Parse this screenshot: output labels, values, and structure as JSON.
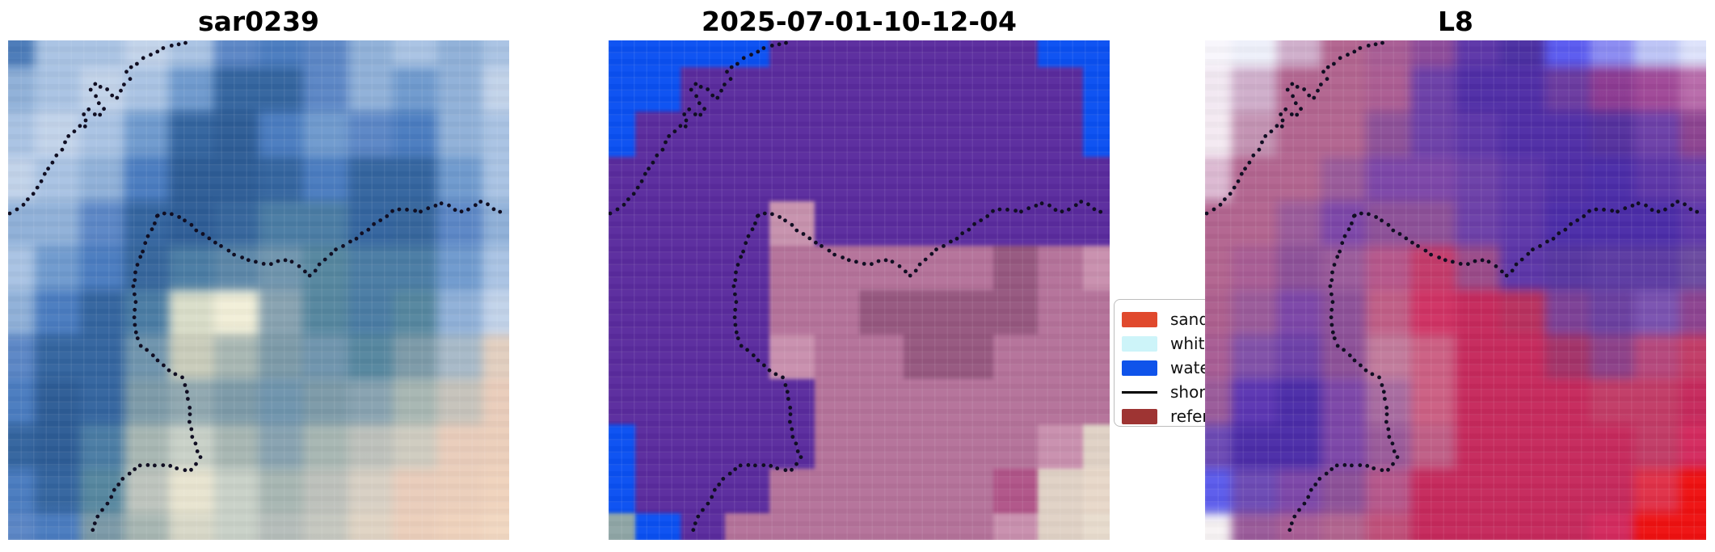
{
  "figure": {
    "background": "#ffffff"
  },
  "chart_data": [
    {
      "type": "heatmap",
      "title": "sar0239",
      "description": "SAR/optical satellite tile, pixelated blues with cloud and beige areas, dotted shoreline overlay",
      "grid_colors": [
        [
          "#4a7ab8",
          "#a9c3e3",
          "#a9c3e3",
          "#c2d3ea",
          "#a9c3e3",
          "#5b86c6",
          "#4a7cc0",
          "#5b86c6",
          "#8fb0d8",
          "#a9c3e3",
          "#8fb0d8",
          "#a9c3e3"
        ],
        [
          "#8fb0d8",
          "#a9c3e3",
          "#c2d3ea",
          "#a9c3e3",
          "#6f9ace",
          "#33649f",
          "#33649f",
          "#5b86c6",
          "#8fb0d8",
          "#6f9ace",
          "#8fb0d8",
          "#c2d3ea"
        ],
        [
          "#a9c3e3",
          "#c2d3ea",
          "#a9c3e3",
          "#6f9ace",
          "#33649f",
          "#2d5c96",
          "#4a7cc0",
          "#6f9ace",
          "#5b86c6",
          "#4a7cc0",
          "#8fb0d8",
          "#a9c3e3"
        ],
        [
          "#c2d3ea",
          "#a9c3e3",
          "#8fb0d8",
          "#4a7cc0",
          "#2d5c96",
          "#2d5c96",
          "#33649f",
          "#4a7cc0",
          "#33649f",
          "#33649f",
          "#6f9ace",
          "#a9c3e3"
        ],
        [
          "#8fb0d8",
          "#8fb0d8",
          "#5b86c6",
          "#33649f",
          "#2d5c96",
          "#35659c",
          "#4a7ca4",
          "#4a7ca4",
          "#33649f",
          "#35659c",
          "#5b86c6",
          "#8fb0d8"
        ],
        [
          "#a9c3e3",
          "#6f9ace",
          "#4a7cc0",
          "#35659c",
          "#4a7ca4",
          "#5b86a8",
          "#6f94ad",
          "#55869f",
          "#4a7ca4",
          "#4a7ca4",
          "#6f9ace",
          "#a9c3e3"
        ],
        [
          "#8fb0d8",
          "#4a7cc0",
          "#33649f",
          "#4a7ca4",
          "#d9ddc9",
          "#f2efd8",
          "#87a2b0",
          "#55869f",
          "#4a7ca4",
          "#55869f",
          "#8fb0d8",
          "#c2d3ea"
        ],
        [
          "#5b86c6",
          "#33649f",
          "#33649f",
          "#6f94ad",
          "#c9ccba",
          "#a7b6b2",
          "#7c9aa8",
          "#6f94ad",
          "#55869f",
          "#7c9aa8",
          "#a7b9c8",
          "#e2cfc0"
        ],
        [
          "#4a7cc0",
          "#2d5c96",
          "#33649f",
          "#7c9aa8",
          "#90a8b0",
          "#7c9aa8",
          "#6f94ad",
          "#7c9aa8",
          "#87a2b0",
          "#a7b6b2",
          "#c6c3bb",
          "#e9cdbb"
        ],
        [
          "#33649f",
          "#2d5c96",
          "#4a7ca4",
          "#a7b6b2",
          "#c9d1c8",
          "#a7b6b2",
          "#87a2b0",
          "#a7b6b2",
          "#bdc1bb",
          "#cfccc0",
          "#e9cdbb",
          "#eccfbb"
        ],
        [
          "#4a7cc0",
          "#33649f",
          "#55869f",
          "#bdc4bd",
          "#e8e4d0",
          "#c9d1c8",
          "#a7b6b2",
          "#bdc1bb",
          "#d8d0c4",
          "#e9cdbb",
          "#eccfbb",
          "#f0d3bd"
        ],
        [
          "#5b86c6",
          "#4a7cc0",
          "#7c9aa8",
          "#a7b6b2",
          "#d8d8c8",
          "#c9d1c8",
          "#b5bdba",
          "#c6c8c0",
          "#e0d4c4",
          "#eccfbb",
          "#f0d3bd",
          "#f2d8c2"
        ]
      ]
    },
    {
      "type": "heatmap",
      "title": "2025-07-01-10-12-04",
      "description": "Classified map: blue water dome corners, purple interior, pink land, cream corner, dotted shoreline overlay",
      "grid_colors": [
        [
          "#0a50f2",
          "#0a50f2",
          "#0a50f2",
          "#0a50f2",
          "#5a2b9e",
          "#5a2b9e",
          "#5a2b9e",
          "#5a2b9e",
          "#5a2b9e",
          "#5a2b9e",
          "#0a50f2",
          "#0a50f2"
        ],
        [
          "#0a50f2",
          "#0a50f2",
          "#5a2b9e",
          "#5a2b9e",
          "#5a2b9e",
          "#5a2b9e",
          "#5a2b9e",
          "#5a2b9e",
          "#5a2b9e",
          "#5a2b9e",
          "#5a2b9e",
          "#0a50f2"
        ],
        [
          "#0a50f2",
          "#5a2b9e",
          "#5a2b9e",
          "#5a2b9e",
          "#5a2b9e",
          "#5a2b9e",
          "#5a2b9e",
          "#5a2b9e",
          "#5a2b9e",
          "#5a2b9e",
          "#5a2b9e",
          "#0a50f2"
        ],
        [
          "#5a2b9e",
          "#5a2b9e",
          "#5a2b9e",
          "#5a2b9e",
          "#5a2b9e",
          "#5a2b9e",
          "#5a2b9e",
          "#5a2b9e",
          "#5a2b9e",
          "#5a2b9e",
          "#5a2b9e",
          "#5a2b9e"
        ],
        [
          "#5a2b9e",
          "#5a2b9e",
          "#5a2b9e",
          "#5a2b9e",
          "#c791ad",
          "#5a2b9e",
          "#5a2b9e",
          "#5a2b9e",
          "#5a2b9e",
          "#5a2b9e",
          "#5a2b9e",
          "#5a2b9e"
        ],
        [
          "#5a2b9e",
          "#5a2b9e",
          "#5a2b9e",
          "#5a2b9e",
          "#b4729a",
          "#b4729a",
          "#b4729a",
          "#b4729a",
          "#b4729a",
          "#96577f",
          "#b4729a",
          "#c98fae"
        ],
        [
          "#5a2b9e",
          "#5a2b9e",
          "#5a2b9e",
          "#5a2b9e",
          "#b4729a",
          "#b4729a",
          "#96577f",
          "#96577f",
          "#96577f",
          "#96577f",
          "#b4729a",
          "#b4729a"
        ],
        [
          "#5a2b9e",
          "#5a2b9e",
          "#5a2b9e",
          "#5a2b9e",
          "#c98fae",
          "#b4729a",
          "#b4729a",
          "#96577f",
          "#96577f",
          "#b4729a",
          "#b4729a",
          "#b4729a"
        ],
        [
          "#5a2b9e",
          "#5a2b9e",
          "#5a2b9e",
          "#5a2b9e",
          "#5a2b9e",
          "#b4729a",
          "#b4729a",
          "#b4729a",
          "#b4729a",
          "#b4729a",
          "#b4729a",
          "#b4729a"
        ],
        [
          "#0a50f2",
          "#5a2b9e",
          "#5a2b9e",
          "#5a2b9e",
          "#5a2b9e",
          "#b4729a",
          "#b4729a",
          "#b4729a",
          "#b4729a",
          "#b4729a",
          "#c98fae",
          "#e0d2c6"
        ],
        [
          "#0a50f2",
          "#5a2b9e",
          "#5a2b9e",
          "#5a2b9e",
          "#b4729a",
          "#b4729a",
          "#b4729a",
          "#b4729a",
          "#b4729a",
          "#b05488",
          "#e0d2c6",
          "#e8d8ca"
        ],
        [
          "#8fa6a6",
          "#0a50f2",
          "#5a2b9e",
          "#b4729a",
          "#b4729a",
          "#b4729a",
          "#b4729a",
          "#b4729a",
          "#b4729a",
          "#c98fae",
          "#e0d2c6",
          "#e8dcce"
        ]
      ]
    },
    {
      "type": "heatmap",
      "title": "L8",
      "description": "Landsat-8 style tile: white corners, mauve arc, indigo upper-right, crimson land, bright red corner, dotted shoreline overlay",
      "grid_colors": [
        [
          "#f8f6fc",
          "#eef0fa",
          "#cfaecb",
          "#b2648f",
          "#a85c94",
          "#8c4a9a",
          "#5c35a8",
          "#4b2fa2",
          "#5a5af0",
          "#8a8af2",
          "#bcc4f6",
          "#dde2fb"
        ],
        [
          "#f2e8f2",
          "#cfaecb",
          "#b2648f",
          "#b2648f",
          "#ab5c92",
          "#6c3fa8",
          "#4f2da6",
          "#4f2da6",
          "#6a3aa0",
          "#8c3a92",
          "#a04898",
          "#b86aaa"
        ],
        [
          "#f4eaf2",
          "#c392b2",
          "#b2648f",
          "#b2648f",
          "#8c5098",
          "#6c3fa8",
          "#5c35a8",
          "#4f2da6",
          "#4f2da6",
          "#54309e",
          "#6c3fa8",
          "#8c4390"
        ],
        [
          "#dcb9d2",
          "#b2648f",
          "#b2648f",
          "#9a5a9a",
          "#7c46a8",
          "#7c46a8",
          "#6c3fa8",
          "#5c35a8",
          "#4f2da6",
          "#4b2ca8",
          "#5c35a8",
          "#6c3fa8"
        ],
        [
          "#b2648f",
          "#b2648f",
          "#9a5a9a",
          "#7c46a8",
          "#8c5098",
          "#8c5098",
          "#6c3fa8",
          "#5c35a8",
          "#4b2ca8",
          "#4b2ca8",
          "#4b2ca8",
          "#5c35a8"
        ],
        [
          "#b2648f",
          "#a85c94",
          "#8c5098",
          "#9a5a9a",
          "#b5568a",
          "#c43a6a",
          "#9a4a88",
          "#5c35a8",
          "#5635a0",
          "#5b3aa2",
          "#5b3aa2",
          "#6a4aa0"
        ],
        [
          "#ad5f8e",
          "#9a5a9a",
          "#7c46a8",
          "#8c5098",
          "#c05e86",
          "#d03264",
          "#c6295c",
          "#b8305e",
          "#7c3f96",
          "#6a3fa0",
          "#7a52b0",
          "#8c4390"
        ],
        [
          "#a85c94",
          "#8050a8",
          "#6c3fa8",
          "#8c5098",
          "#c27b9c",
          "#cc5f83",
          "#c6295c",
          "#c6295c",
          "#a33268",
          "#8c4088",
          "#b5477c",
          "#c23b66"
        ],
        [
          "#9a5a9a",
          "#5b35b2",
          "#4b2ca8",
          "#7c46a8",
          "#a86ba0",
          "#cc5f83",
          "#c6295c",
          "#c6295c",
          "#c6295c",
          "#c23b66",
          "#c23b66",
          "#c6295c"
        ],
        [
          "#6c4ab4",
          "#4b2ca8",
          "#4b2ca8",
          "#7c46a8",
          "#9a5a9a",
          "#c05e86",
          "#c6295c",
          "#c6295c",
          "#c6295c",
          "#c6295c",
          "#c23b66",
          "#d42a5e"
        ],
        [
          "#5b5bec",
          "#6c4ab4",
          "#7c46a8",
          "#8c5098",
          "#b5568a",
          "#c6295c",
          "#c6295c",
          "#c6295c",
          "#c6295c",
          "#c6295c",
          "#e03048",
          "#ef1010"
        ],
        [
          "#f7f3f4",
          "#9a5a9a",
          "#a85c94",
          "#b2648f",
          "#c0507a",
          "#c6295c",
          "#c6295c",
          "#c6295c",
          "#c6295c",
          "#d42a5e",
          "#ef1010",
          "#ef1010"
        ]
      ]
    }
  ],
  "legend": {
    "entries": [
      {
        "label": "sand",
        "color": "#e0492d",
        "kind": "patch"
      },
      {
        "label": "white",
        "color": "#cdf4f9",
        "kind": "patch"
      },
      {
        "label": "water",
        "color": "#0f53ea",
        "kind": "patch"
      },
      {
        "label": "shore",
        "color": "#000000",
        "kind": "line"
      },
      {
        "label": "refer",
        "color": "#9e3433",
        "kind": "patch"
      }
    ],
    "note_visible_labels_truncated_by_right_panel": true
  },
  "shoreline_overlay": {
    "style": "dotted",
    "color": "#100e22",
    "segments": [
      [
        [
          0.005,
          0.345
        ],
        [
          0.025,
          0.335
        ],
        [
          0.04,
          0.315
        ],
        [
          0.055,
          0.3
        ],
        [
          0.07,
          0.275
        ],
        [
          0.078,
          0.26
        ],
        [
          0.088,
          0.245
        ],
        [
          0.1,
          0.228
        ],
        [
          0.112,
          0.212
        ],
        [
          0.118,
          0.195
        ],
        [
          0.128,
          0.185
        ],
        [
          0.14,
          0.172
        ],
        [
          0.152,
          0.176
        ],
        [
          0.158,
          0.163
        ],
        [
          0.148,
          0.15
        ],
        [
          0.158,
          0.137
        ],
        [
          0.17,
          0.146
        ],
        [
          0.182,
          0.152
        ],
        [
          0.192,
          0.136
        ],
        [
          0.178,
          0.118
        ],
        [
          0.165,
          0.1
        ],
        [
          0.175,
          0.085
        ],
        [
          0.19,
          0.094
        ],
        [
          0.203,
          0.103
        ],
        [
          0.212,
          0.118
        ],
        [
          0.224,
          0.105
        ],
        [
          0.232,
          0.088
        ],
        [
          0.243,
          0.077
        ],
        [
          0.236,
          0.062
        ],
        [
          0.25,
          0.052
        ],
        [
          0.264,
          0.042
        ],
        [
          0.278,
          0.032
        ],
        [
          0.292,
          0.026
        ],
        [
          0.308,
          0.018
        ],
        [
          0.322,
          0.012
        ],
        [
          0.34,
          0.007
        ],
        [
          0.355,
          0.004
        ]
      ],
      [
        [
          0.298,
          0.352
        ],
        [
          0.315,
          0.345
        ],
        [
          0.33,
          0.348
        ],
        [
          0.345,
          0.355
        ],
        [
          0.36,
          0.366
        ],
        [
          0.375,
          0.378
        ],
        [
          0.39,
          0.389
        ],
        [
          0.405,
          0.398
        ],
        [
          0.42,
          0.408
        ],
        [
          0.435,
          0.419
        ],
        [
          0.45,
          0.428
        ],
        [
          0.465,
          0.434
        ],
        [
          0.48,
          0.44
        ],
        [
          0.495,
          0.444
        ],
        [
          0.51,
          0.447
        ],
        [
          0.525,
          0.447
        ],
        [
          0.54,
          0.443
        ],
        [
          0.552,
          0.44
        ],
        [
          0.565,
          0.443
        ],
        [
          0.578,
          0.452
        ],
        [
          0.59,
          0.462
        ],
        [
          0.602,
          0.472
        ],
        [
          0.614,
          0.46
        ],
        [
          0.625,
          0.447
        ],
        [
          0.64,
          0.432
        ],
        [
          0.655,
          0.419
        ],
        [
          0.67,
          0.41
        ],
        [
          0.685,
          0.402
        ],
        [
          0.7,
          0.392
        ],
        [
          0.715,
          0.38
        ],
        [
          0.73,
          0.368
        ],
        [
          0.745,
          0.357
        ],
        [
          0.76,
          0.347
        ],
        [
          0.775,
          0.34
        ],
        [
          0.79,
          0.337
        ],
        [
          0.805,
          0.341
        ],
        [
          0.82,
          0.345
        ],
        [
          0.835,
          0.34
        ],
        [
          0.85,
          0.33
        ],
        [
          0.865,
          0.325
        ],
        [
          0.878,
          0.33
        ],
        [
          0.89,
          0.338
        ],
        [
          0.902,
          0.344
        ],
        [
          0.915,
          0.34
        ],
        [
          0.928,
          0.33
        ],
        [
          0.942,
          0.322
        ],
        [
          0.956,
          0.328
        ],
        [
          0.968,
          0.338
        ],
        [
          0.98,
          0.345
        ],
        [
          0.995,
          0.34
        ]
      ],
      [
        [
          0.298,
          0.352
        ],
        [
          0.29,
          0.37
        ],
        [
          0.282,
          0.39
        ],
        [
          0.272,
          0.41
        ],
        [
          0.265,
          0.43
        ],
        [
          0.258,
          0.45
        ],
        [
          0.253,
          0.47
        ],
        [
          0.25,
          0.49
        ],
        [
          0.252,
          0.51
        ],
        [
          0.255,
          0.53
        ],
        [
          0.252,
          0.55
        ],
        [
          0.253,
          0.57
        ],
        [
          0.256,
          0.59
        ],
        [
          0.262,
          0.607
        ],
        [
          0.272,
          0.618
        ],
        [
          0.283,
          0.626
        ],
        [
          0.295,
          0.635
        ],
        [
          0.308,
          0.648
        ],
        [
          0.32,
          0.658
        ],
        [
          0.335,
          0.668
        ],
        [
          0.348,
          0.676
        ],
        [
          0.355,
          0.692
        ],
        [
          0.358,
          0.71
        ],
        [
          0.362,
          0.728
        ],
        [
          0.364,
          0.746
        ],
        [
          0.362,
          0.764
        ],
        [
          0.366,
          0.782
        ],
        [
          0.37,
          0.8
        ],
        [
          0.378,
          0.82
        ],
        [
          0.383,
          0.838
        ],
        [
          0.372,
          0.852
        ],
        [
          0.357,
          0.864
        ],
        [
          0.34,
          0.856
        ],
        [
          0.322,
          0.85
        ],
        [
          0.305,
          0.852
        ],
        [
          0.288,
          0.853
        ],
        [
          0.27,
          0.85
        ],
        [
          0.255,
          0.853
        ],
        [
          0.243,
          0.866
        ],
        [
          0.228,
          0.878
        ],
        [
          0.218,
          0.892
        ],
        [
          0.208,
          0.908
        ],
        [
          0.198,
          0.925
        ],
        [
          0.188,
          0.94
        ],
        [
          0.178,
          0.956
        ],
        [
          0.172,
          0.972
        ],
        [
          0.168,
          0.988
        ]
      ]
    ]
  }
}
